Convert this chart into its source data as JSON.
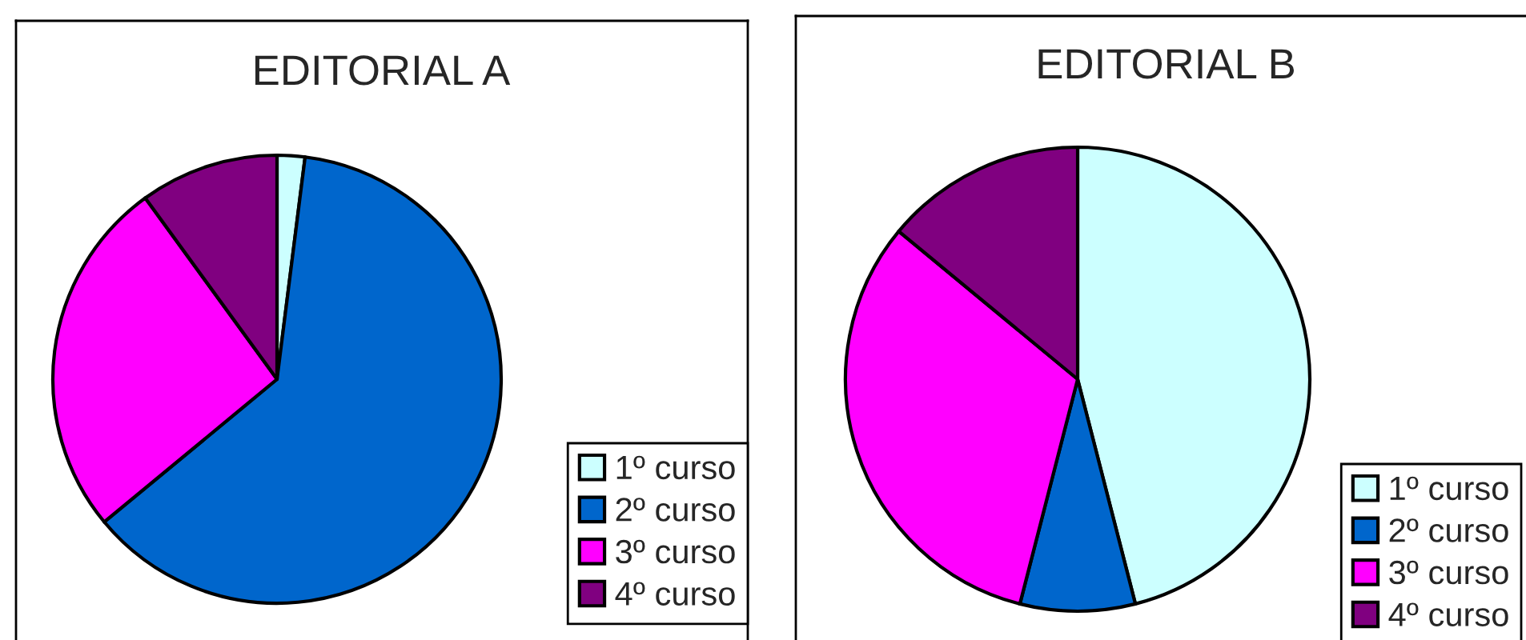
{
  "chart_data": [
    {
      "type": "pie",
      "title": "EDITORIAL A",
      "categories": [
        "1º curso",
        "2º curso",
        "3º curso",
        "4º curso"
      ],
      "values": [
        2,
        62,
        26,
        10
      ],
      "colors": [
        "#ccffff",
        "#0066cc",
        "#ff00ff",
        "#800080"
      ],
      "legend": "bottom right"
    },
    {
      "type": "pie",
      "title": "EDITORIAL B",
      "categories": [
        "1º curso",
        "2º curso",
        "3º curso",
        "4º curso"
      ],
      "values": [
        46,
        8,
        32,
        14
      ],
      "colors": [
        "#ccffff",
        "#0066cc",
        "#ff00ff",
        "#800080"
      ],
      "legend": "bottom right"
    }
  ]
}
